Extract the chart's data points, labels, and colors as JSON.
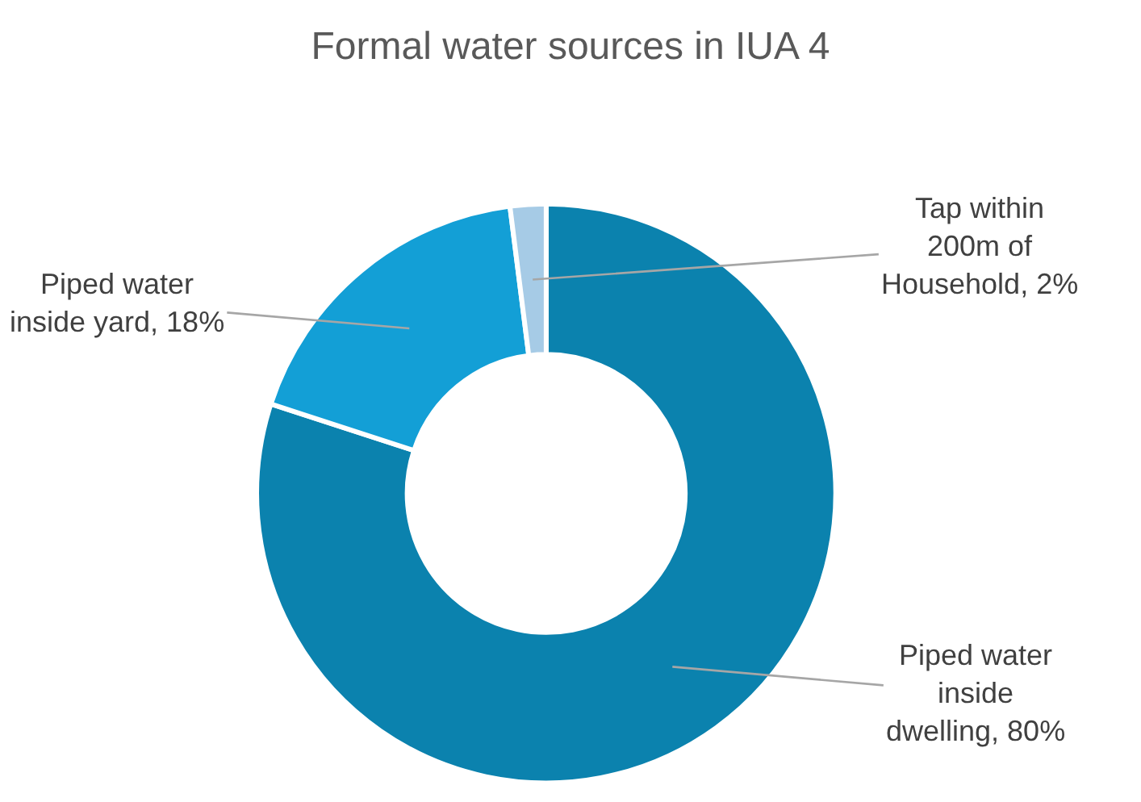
{
  "chart_data": {
    "type": "donut",
    "title": "Formal water sources in IUA 4",
    "categories": [
      "Piped water inside dwelling",
      "Piped water inside yard",
      "Tap within 200m of Household"
    ],
    "values": [
      80,
      18,
      2
    ],
    "colors": [
      "#0b82ae",
      "#139fd6",
      "#a6cbe6"
    ],
    "value_labels": [
      "80%",
      "18%",
      "2%"
    ],
    "legend": false
  }
}
